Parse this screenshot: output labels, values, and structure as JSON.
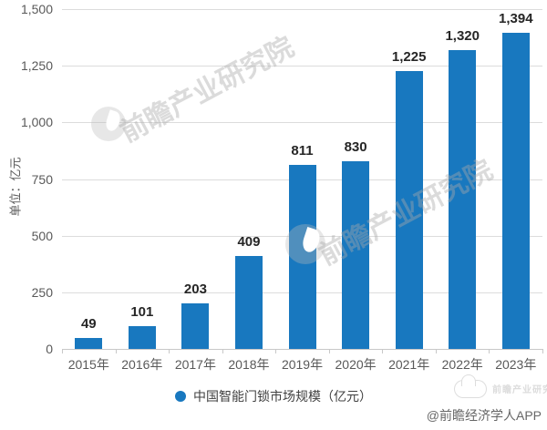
{
  "chart_data": {
    "type": "bar",
    "title": "",
    "categories": [
      "2015年",
      "2016年",
      "2017年",
      "2018年",
      "2019年",
      "2020年",
      "2021年",
      "2022年",
      "2023年"
    ],
    "values": [
      49,
      101,
      203,
      409,
      811,
      830,
      1225,
      1320,
      1394
    ],
    "value_labels": [
      "49",
      "101",
      "203",
      "409",
      "811",
      "830",
      "1,225",
      "1,320",
      "1,394"
    ],
    "xlabel": "",
    "ylabel": "单位：亿元",
    "ylim": [
      0,
      1500
    ],
    "yticks": [
      0,
      250,
      500,
      750,
      1000,
      1250,
      1500
    ],
    "grid": true,
    "legend_position": "bottom",
    "legend": "中国智能门锁市场规模（亿元）",
    "bar_color": "#1878bf"
  },
  "watermark": {
    "text": "前瞻产业研究院"
  },
  "footer": {
    "credit": "@前瞻经济学人APP"
  },
  "colors": {
    "bar": "#1878bf",
    "value_label": "#262626",
    "axis_text": "#595959",
    "gridline": "#dcdcdc",
    "legend_text": "#404040",
    "credit_text": "#666666"
  }
}
